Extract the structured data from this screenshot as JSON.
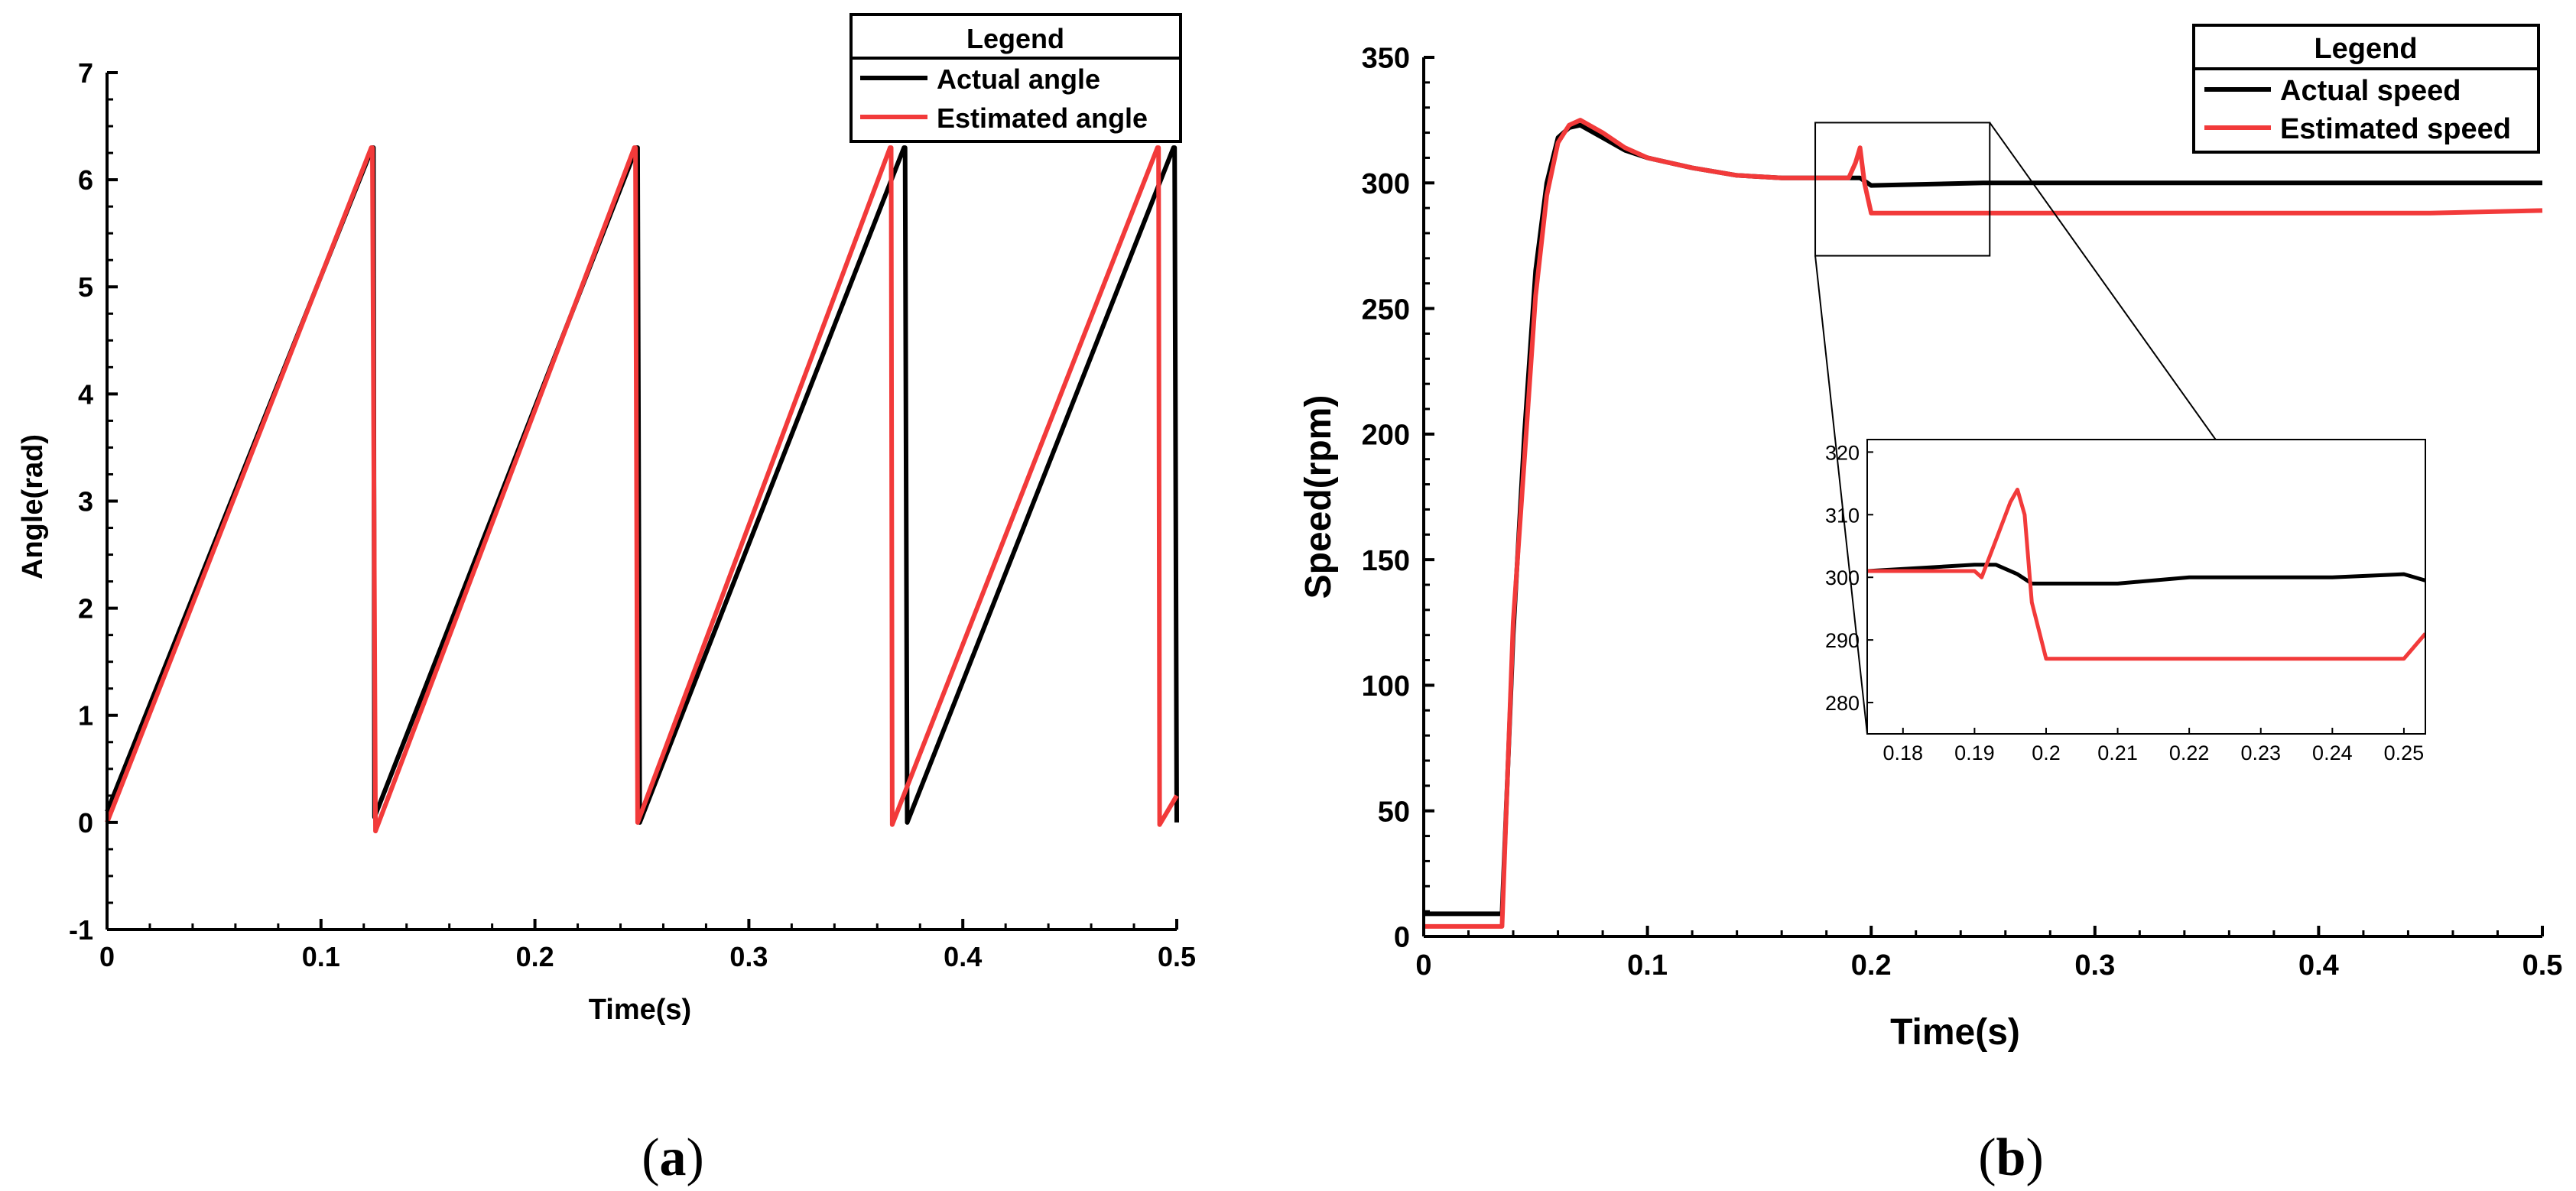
{
  "colors": {
    "actual": "#000000",
    "estimated": "#f23a3a",
    "axis": "#000000",
    "background": "#ffffff"
  },
  "panels": {
    "a": {
      "label": "a",
      "label_prefix": "(",
      "label_suffix": ")"
    },
    "b": {
      "label": "b",
      "label_prefix": "(",
      "label_suffix": ")"
    }
  },
  "chart_data": [
    {
      "id": "a",
      "type": "line",
      "title": "",
      "xlabel": "Time(s)",
      "ylabel": "Angle(rad)",
      "xlim": [
        0,
        0.5
      ],
      "ylim": [
        -1,
        7
      ],
      "xticks": [
        0,
        0.1,
        0.2,
        0.3,
        0.4,
        0.5
      ],
      "xtick_labels": [
        "0",
        "0.1",
        "0.2",
        "0.3",
        "0.4",
        "0.5"
      ],
      "yticks": [
        -1,
        0,
        1,
        2,
        3,
        4,
        5,
        6,
        7
      ],
      "ytick_labels": [
        "-1",
        "0",
        "1",
        "2",
        "3",
        "4",
        "5",
        "6",
        "7"
      ],
      "grid": false,
      "legend": {
        "title": "Legend",
        "position": "top-right"
      },
      "series": [
        {
          "name": "Actual angle",
          "color": "#000000",
          "x": [
            0,
            0.124,
            0.1245,
            0.125,
            0.2475,
            0.248,
            0.249,
            0.3725,
            0.373,
            0.374,
            0.4985,
            0.499,
            0.5
          ],
          "y": [
            0.1,
            6.3,
            6.3,
            0.05,
            6.3,
            6.3,
            0.0,
            6.3,
            6.3,
            0.0,
            6.3,
            6.3,
            0.0
          ]
        },
        {
          "name": "Estimated angle",
          "color": "#f23a3a",
          "x": [
            0,
            0.1235,
            0.124,
            0.1255,
            0.2465,
            0.247,
            0.248,
            0.366,
            0.3665,
            0.367,
            0.491,
            0.4915,
            0.492,
            0.5
          ],
          "y": [
            0.0,
            6.3,
            6.3,
            -0.08,
            6.3,
            6.3,
            0.0,
            6.3,
            6.3,
            -0.02,
            6.3,
            6.3,
            -0.02,
            0.25
          ]
        }
      ]
    },
    {
      "id": "b",
      "type": "line",
      "title": "",
      "xlabel": "Time(s)",
      "ylabel": "Speed(rpm)",
      "xlim": [
        0,
        0.5
      ],
      "ylim": [
        0,
        350
      ],
      "xticks": [
        0,
        0.1,
        0.2,
        0.3,
        0.4,
        0.5
      ],
      "xtick_labels": [
        "0",
        "0.1",
        "0.2",
        "0.3",
        "0.4",
        "0.5"
      ],
      "yticks": [
        0,
        50,
        100,
        150,
        200,
        250,
        300,
        350
      ],
      "ytick_labels": [
        "0",
        "50",
        "100",
        "150",
        "200",
        "250",
        "300",
        "350"
      ],
      "grid": false,
      "legend": {
        "title": "Legend",
        "position": "top-right"
      },
      "series": [
        {
          "name": "Actual speed",
          "color": "#000000",
          "x": [
            0,
            0.032,
            0.035,
            0.04,
            0.045,
            0.05,
            0.055,
            0.06,
            0.065,
            0.07,
            0.08,
            0.09,
            0.1,
            0.12,
            0.14,
            0.16,
            0.18,
            0.19,
            0.195,
            0.2,
            0.25,
            0.3,
            0.35,
            0.4,
            0.45,
            0.5
          ],
          "y": [
            9,
            9,
            9,
            120,
            200,
            265,
            300,
            318,
            322,
            323,
            318,
            313,
            310,
            306,
            303,
            302,
            302,
            302,
            302,
            299,
            300,
            300,
            300,
            300,
            300,
            300
          ]
        },
        {
          "name": "Estimated speed",
          "color": "#f23a3a",
          "x": [
            0,
            0.033,
            0.035,
            0.04,
            0.045,
            0.05,
            0.055,
            0.06,
            0.065,
            0.07,
            0.08,
            0.09,
            0.1,
            0.12,
            0.14,
            0.16,
            0.18,
            0.19,
            0.193,
            0.195,
            0.197,
            0.2,
            0.25,
            0.3,
            0.35,
            0.4,
            0.45,
            0.5
          ],
          "y": [
            4,
            4,
            4,
            125,
            190,
            255,
            295,
            316,
            323,
            325,
            320,
            314,
            310,
            306,
            303,
            302,
            302,
            302,
            308,
            314,
            300,
            288,
            288,
            288,
            288,
            288,
            288,
            289
          ]
        }
      ],
      "zoom_box": {
        "xlim": [
          0.175,
          0.253
        ],
        "ylim": [
          271,
          324
        ]
      },
      "inset": {
        "xlim": [
          0.175,
          0.253
        ],
        "ylim": [
          275,
          322
        ],
        "xticks": [
          0.18,
          0.19,
          0.2,
          0.21,
          0.22,
          0.23,
          0.24,
          0.25
        ],
        "xtick_labels": [
          "0.18",
          "0.19",
          "0.2",
          "0.21",
          "0.22",
          "0.23",
          "0.24",
          "0.25"
        ],
        "yticks": [
          280,
          290,
          300,
          310,
          320
        ],
        "ytick_labels": [
          "280",
          "290",
          "300",
          "310",
          "320"
        ],
        "series": [
          {
            "name": "Actual speed",
            "color": "#000000",
            "x": [
              0.175,
              0.19,
              0.193,
              0.196,
              0.198,
              0.2,
              0.21,
              0.22,
              0.23,
              0.24,
              0.25,
              0.253
            ],
            "y": [
              301,
              302,
              302,
              300.5,
              299,
              299,
              299,
              300,
              300,
              300,
              300.5,
              299.5
            ]
          },
          {
            "name": "Estimated speed",
            "color": "#f23a3a",
            "x": [
              0.175,
              0.19,
              0.191,
              0.193,
              0.195,
              0.196,
              0.197,
              0.198,
              0.2,
              0.21,
              0.22,
              0.23,
              0.24,
              0.25,
              0.253
            ],
            "y": [
              301,
              301,
              300,
              306,
              312,
              314,
              310,
              296,
              287,
              287,
              287,
              287,
              287,
              287,
              291
            ]
          }
        ]
      }
    }
  ]
}
